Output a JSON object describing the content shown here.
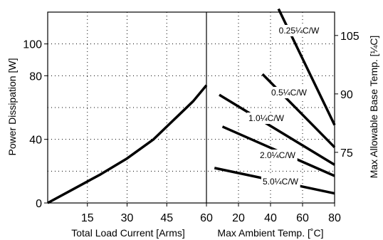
{
  "chart_data": [
    {
      "type": "line",
      "xlabel": "Total Load Current  [Arms]",
      "ylabel": "Power Dissipation [W]",
      "xlim": [
        0,
        60
      ],
      "ylim": [
        0,
        120
      ],
      "x_ticks": [
        15,
        30,
        45,
        60
      ],
      "y_ticks": [
        0,
        40,
        80,
        100
      ],
      "grid": true,
      "series": [
        {
          "x": [
            0,
            10,
            20,
            30,
            40,
            45,
            50,
            55,
            60
          ],
          "y": [
            0,
            9,
            18,
            28,
            40,
            48,
            56,
            64,
            74
          ]
        }
      ]
    },
    {
      "type": "line",
      "xlabel": "Max Ambient Temp. [˚C]",
      "ylabel": "Max Allowable Base Temp. [¼C]",
      "xlim": [
        0,
        80
      ],
      "ylim": [
        0,
        120
      ],
      "x_ticks": [
        20,
        40,
        60,
        80
      ],
      "y_ticks_right": [
        75,
        90,
        105
      ],
      "grid": true,
      "series": [
        {
          "name": "0.25¼C/W",
          "x": [
            45,
            80
          ],
          "y": [
            122,
            49
          ]
        },
        {
          "name": "0.5¼C/W",
          "x": [
            35,
            80
          ],
          "y": [
            81,
            35
          ]
        },
        {
          "name": "1.0¼C/W",
          "x": [
            8,
            80
          ],
          "y": [
            68,
            24
          ]
        },
        {
          "name": "2.0¼C/W",
          "x": [
            10,
            80
          ],
          "y": [
            48,
            17
          ]
        },
        {
          "name": "5.0¼C/W",
          "x": [
            5,
            80
          ],
          "y": [
            22,
            6
          ]
        }
      ]
    }
  ],
  "colors": {
    "line": "#000000",
    "grid": "#000000",
    "background": "#ffffff"
  }
}
